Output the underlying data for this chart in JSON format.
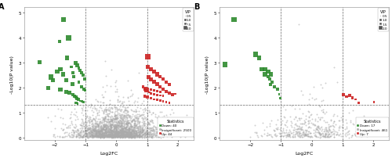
{
  "panel_A": {
    "title": "A",
    "xlabel": "Log2FC",
    "ylabel": "-Log10(P value)",
    "xlim": [
      -3,
      2.5
    ],
    "ylim": [
      -0.1,
      5.2
    ],
    "xticks": [
      -2,
      -1,
      0,
      1,
      2
    ],
    "yticks": [
      0,
      1,
      2,
      3,
      4,
      5
    ],
    "vline1": -1,
    "vline2": 1,
    "hline": 1.3,
    "down_count": 40,
    "insig_count": 2500,
    "up_count": 44,
    "down_color": "#2e8b2e",
    "up_color": "#cc2222",
    "insig_color": "#aaaaaa",
    "down_pts": [
      [
        -2.5,
        3.0
      ],
      [
        -1.85,
        3.85
      ],
      [
        -1.72,
        4.72
      ],
      [
        -1.6,
        3.18
      ],
      [
        -1.55,
        3.98
      ],
      [
        -1.45,
        2.82
      ],
      [
        -1.42,
        2.58
      ],
      [
        -1.38,
        2.42
      ],
      [
        -1.32,
        2.98
      ],
      [
        -1.28,
        2.88
      ],
      [
        -1.22,
        2.78
      ],
      [
        -1.18,
        2.68
      ],
      [
        -1.14,
        2.58
      ],
      [
        -1.08,
        2.48
      ],
      [
        -1.04,
        2.32
      ],
      [
        -2.05,
        2.28
      ],
      [
        -2.22,
        1.98
      ],
      [
        -1.82,
        1.92
      ],
      [
        -1.62,
        1.82
      ],
      [
        -1.52,
        1.78
      ],
      [
        -1.42,
        1.72
      ],
      [
        -1.36,
        1.66
      ],
      [
        -1.32,
        1.62
      ],
      [
        -1.28,
        1.56
      ],
      [
        -1.24,
        1.52
      ],
      [
        -1.18,
        1.46
      ],
      [
        -1.12,
        1.44
      ],
      [
        -1.06,
        1.4
      ],
      [
        -1.32,
        1.38
      ],
      [
        -1.26,
        1.35
      ],
      [
        -1.42,
        2.12
      ],
      [
        -1.62,
        2.28
      ],
      [
        -1.72,
        2.52
      ],
      [
        -1.82,
        2.72
      ],
      [
        -1.92,
        2.62
      ],
      [
        -2.12,
        2.42
      ],
      [
        -1.22,
        2.22
      ],
      [
        -1.12,
        2.02
      ],
      [
        -1.06,
        1.92
      ],
      [
        -1.02,
        1.88
      ]
    ],
    "down_vip": [
      1.5,
      1.2,
      2.0,
      1.3,
      1.8,
      1.1,
      1.0,
      0.9,
      1.4,
      1.3,
      1.2,
      1.1,
      1.0,
      0.9,
      0.8,
      1.6,
      1.7,
      1.5,
      1.4,
      1.3,
      1.2,
      1.1,
      1.0,
      0.9,
      0.8,
      0.7,
      0.6,
      0.5,
      0.8,
      0.7,
      1.3,
      1.4,
      1.5,
      1.6,
      1.7,
      1.8,
      1.0,
      0.9,
      0.8,
      0.7
    ],
    "up_pts": [
      [
        1.02,
        3.22
      ],
      [
        1.05,
        2.42
      ],
      [
        1.12,
        2.32
      ],
      [
        1.22,
        2.22
      ],
      [
        1.32,
        2.12
      ],
      [
        1.42,
        2.02
      ],
      [
        1.52,
        1.92
      ],
      [
        1.62,
        1.82
      ],
      [
        1.72,
        1.76
      ],
      [
        1.82,
        1.72
      ],
      [
        0.92,
        1.66
      ],
      [
        1.02,
        1.62
      ],
      [
        1.12,
        1.58
      ],
      [
        1.22,
        1.52
      ],
      [
        1.32,
        1.5
      ],
      [
        1.42,
        1.47
      ],
      [
        1.52,
        1.44
      ],
      [
        1.62,
        1.41
      ],
      [
        1.72,
        1.39
      ],
      [
        0.87,
        2.02
      ],
      [
        0.92,
        1.92
      ],
      [
        0.97,
        1.87
      ],
      [
        1.02,
        1.84
      ],
      [
        1.07,
        1.8
      ],
      [
        1.12,
        1.76
      ],
      [
        1.22,
        1.73
      ],
      [
        1.32,
        1.7
      ],
      [
        1.42,
        1.68
      ],
      [
        1.52,
        1.66
      ],
      [
        1.02,
        2.82
      ],
      [
        1.12,
        2.72
      ],
      [
        1.22,
        2.62
      ],
      [
        1.32,
        2.52
      ],
      [
        1.42,
        2.42
      ],
      [
        1.52,
        2.32
      ],
      [
        1.62,
        2.22
      ],
      [
        1.72,
        2.12
      ],
      [
        0.97,
        1.97
      ],
      [
        1.02,
        1.94
      ],
      [
        1.12,
        1.9
      ],
      [
        1.22,
        1.87
      ],
      [
        1.32,
        1.85
      ],
      [
        1.42,
        1.82
      ],
      [
        1.92,
        1.74
      ]
    ],
    "up_vip": [
      1.8,
      1.3,
      1.5,
      1.4,
      1.3,
      1.2,
      1.1,
      1.0,
      0.9,
      0.8,
      0.9,
      0.8,
      0.7,
      0.6,
      0.5,
      0.5,
      0.5,
      0.5,
      0.5,
      1.0,
      0.9,
      0.8,
      0.7,
      0.6,
      0.6,
      0.6,
      0.6,
      0.6,
      0.6,
      1.6,
      1.5,
      1.4,
      1.3,
      1.2,
      1.1,
      1.0,
      0.9,
      0.8,
      0.7,
      0.6,
      0.6,
      0.6,
      0.6,
      0.7
    ]
  },
  "panel_B": {
    "title": "B",
    "xlabel": "Log2FC",
    "ylabel": "-Log10(P value)",
    "xlim": [
      -3,
      2.5
    ],
    "ylim": [
      -0.1,
      5.2
    ],
    "xticks": [
      -2,
      -1,
      0,
      1,
      2
    ],
    "yticks": [
      0,
      1,
      2,
      3,
      4,
      5
    ],
    "vline1": -1,
    "vline2": 1,
    "hline": 1.3,
    "down_count": 17,
    "insig_count": 461,
    "up_count": 7,
    "down_color": "#2e8b2e",
    "up_color": "#cc2222",
    "insig_color": "#aaaaaa",
    "down_pts": [
      [
        -2.52,
        4.72
      ],
      [
        -2.82,
        2.92
      ],
      [
        -1.82,
        3.32
      ],
      [
        -1.72,
        3.18
      ],
      [
        -1.62,
        2.72
      ],
      [
        -1.52,
        2.72
      ],
      [
        -1.52,
        2.52
      ],
      [
        -1.42,
        2.62
      ],
      [
        -1.42,
        2.42
      ],
      [
        -1.36,
        2.32
      ],
      [
        -1.32,
        2.52
      ],
      [
        -1.28,
        2.22
      ],
      [
        -1.22,
        2.02
      ],
      [
        -1.12,
        1.92
      ],
      [
        -1.06,
        1.72
      ],
      [
        -1.02,
        1.58
      ],
      [
        -1.35,
        2.12
      ]
    ],
    "down_vip": [
      2.0,
      1.9,
      1.8,
      1.6,
      1.5,
      1.4,
      1.3,
      1.4,
      1.2,
      1.1,
      1.3,
      1.0,
      0.9,
      0.8,
      0.7,
      0.6,
      1.1
    ],
    "up_pts": [
      [
        1.02,
        1.72
      ],
      [
        1.22,
        1.67
      ],
      [
        1.12,
        1.63
      ],
      [
        1.32,
        1.57
      ],
      [
        1.42,
        1.52
      ],
      [
        2.02,
        1.42
      ],
      [
        1.52,
        1.37
      ]
    ],
    "up_vip": [
      1.2,
      1.0,
      0.9,
      0.8,
      0.7,
      0.6,
      0.5
    ]
  },
  "vip_sizes": {
    "0.5": 4,
    "1.0": 8,
    "1.5": 14,
    "2.0": 22
  },
  "insig_point_size": 2,
  "insig_alpha": 0.55,
  "sig_alpha": 0.9
}
